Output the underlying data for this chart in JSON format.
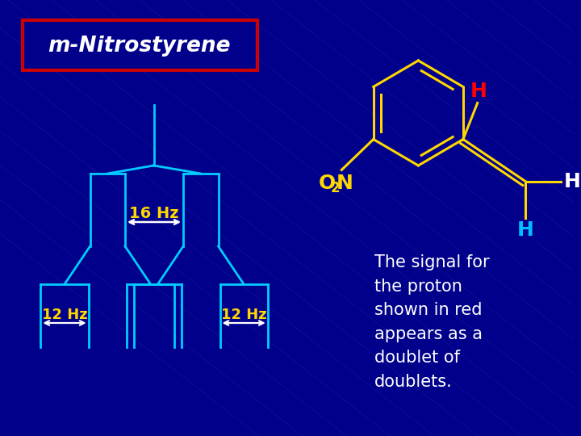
{
  "background_color": "#00008B",
  "title_text": "m-Nitrostyrene",
  "title_box_edge": "#CC0000",
  "title_text_color": "white",
  "molecule_color": "#FFD700",
  "H_red_color": "#FF0000",
  "H_cyan_color": "#00BFFF",
  "H_white_color": "white",
  "tree_color": "#00CCFF",
  "arrow_color": "white",
  "hz_label_color": "#FFD700",
  "desc_text_color": "white",
  "desc_text": "The signal for\nthe proton\nshown in red\nappears as a\ndoublet of\ndoublets.",
  "hz16_label": "16 Hz",
  "hz12a_label": "12 Hz",
  "hz12b_label": "12 Hz"
}
